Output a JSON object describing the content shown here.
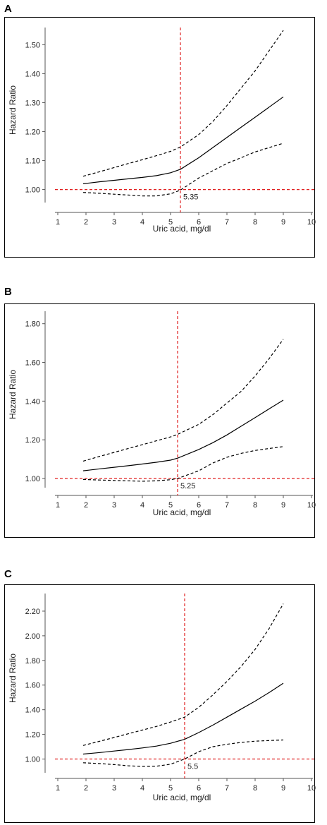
{
  "chart_data": [
    {
      "panel": "A",
      "type": "line",
      "xlabel": "Uric acid, mg/dl",
      "ylabel": "Hazard Ratio",
      "xticks": [
        1,
        2,
        3,
        4,
        5,
        6,
        7,
        8,
        9,
        10
      ],
      "xlim": [
        1,
        10
      ],
      "ylim": [
        0.96,
        1.55
      ],
      "yticks": [
        1.0,
        1.1,
        1.2,
        1.3,
        1.4,
        1.5
      ],
      "ytick_labels": [
        "1.00",
        "1.10",
        "1.20",
        "1.30",
        "1.40",
        "1.50"
      ],
      "cutoff_label": "5.35",
      "cutoff_x": 5.35,
      "ref_y": 1.0,
      "series": [
        {
          "style": "solid",
          "x": [
            1.9,
            2.5,
            3,
            3.5,
            4,
            4.5,
            5,
            5.35,
            6,
            6.5,
            7,
            7.5,
            8,
            8.5,
            9
          ],
          "y": [
            1.02,
            1.027,
            1.032,
            1.037,
            1.042,
            1.048,
            1.058,
            1.07,
            1.11,
            1.145,
            1.18,
            1.215,
            1.25,
            1.285,
            1.32
          ]
        },
        {
          "style": "dashed",
          "x": [
            1.9,
            2.5,
            3,
            3.5,
            4,
            4.5,
            5,
            5.35,
            6,
            6.5,
            7,
            7.5,
            8,
            8.5,
            9
          ],
          "y": [
            1.046,
            1.062,
            1.076,
            1.09,
            1.103,
            1.117,
            1.132,
            1.147,
            1.19,
            1.235,
            1.29,
            1.35,
            1.41,
            1.48,
            1.55
          ]
        },
        {
          "style": "dashed",
          "x": [
            1.9,
            2.5,
            3,
            3.5,
            4,
            4.5,
            5,
            5.35,
            6,
            6.5,
            7,
            7.5,
            8,
            8.5,
            9
          ],
          "y": [
            0.99,
            0.987,
            0.984,
            0.981,
            0.978,
            0.978,
            0.985,
            0.998,
            1.04,
            1.065,
            1.09,
            1.11,
            1.13,
            1.145,
            1.16
          ]
        }
      ]
    },
    {
      "panel": "B",
      "type": "line",
      "xlabel": "Uric acid, mg/dl",
      "ylabel": "Hazard Ratio",
      "xticks": [
        1,
        2,
        3,
        4,
        5,
        6,
        7,
        8,
        9,
        10
      ],
      "xlim": [
        1,
        10
      ],
      "ylim": [
        0.96,
        1.85
      ],
      "yticks": [
        1.0,
        1.2,
        1.4,
        1.6,
        1.8
      ],
      "ytick_labels": [
        "1.00",
        "1.20",
        "1.40",
        "1.60",
        "1.80"
      ],
      "cutoff_label": "5.25",
      "cutoff_x": 5.25,
      "ref_y": 1.0,
      "series": [
        {
          "style": "solid",
          "x": [
            1.9,
            2.5,
            3,
            3.5,
            4,
            4.5,
            5,
            5.25,
            6,
            6.5,
            7,
            7.5,
            8,
            8.5,
            9
          ],
          "y": [
            1.04,
            1.05,
            1.058,
            1.066,
            1.075,
            1.084,
            1.095,
            1.105,
            1.15,
            1.185,
            1.225,
            1.27,
            1.315,
            1.36,
            1.405
          ]
        },
        {
          "style": "dashed",
          "x": [
            1.9,
            2.5,
            3,
            3.5,
            4,
            4.5,
            5,
            5.25,
            6,
            6.5,
            7,
            7.5,
            8,
            8.5,
            9
          ],
          "y": [
            1.09,
            1.115,
            1.135,
            1.155,
            1.175,
            1.195,
            1.215,
            1.228,
            1.28,
            1.33,
            1.39,
            1.45,
            1.53,
            1.62,
            1.72
          ]
        },
        {
          "style": "dashed",
          "x": [
            1.9,
            2.5,
            3,
            3.5,
            4,
            4.5,
            5,
            5.25,
            6,
            6.5,
            7,
            7.5,
            8,
            8.5,
            9
          ],
          "y": [
            0.995,
            0.992,
            0.99,
            0.988,
            0.986,
            0.988,
            0.994,
            1.0,
            1.04,
            1.08,
            1.11,
            1.13,
            1.145,
            1.155,
            1.165
          ]
        }
      ]
    },
    {
      "panel": "C",
      "type": "line",
      "xlabel": "Uric acid, mg/dl",
      "ylabel": "Hazard Ratio",
      "xticks": [
        1,
        2,
        3,
        4,
        5,
        6,
        7,
        8,
        9,
        10
      ],
      "xlim": [
        1,
        10
      ],
      "ylim": [
        0.9,
        2.32
      ],
      "yticks": [
        1.0,
        1.2,
        1.4,
        1.6,
        1.8,
        2.0,
        2.2
      ],
      "ytick_labels": [
        "1.00",
        "1.20",
        "1.40",
        "1.60",
        "1.80",
        "2.00",
        "2.20"
      ],
      "cutoff_label": "5.5",
      "cutoff_x": 5.5,
      "ref_y": 1.0,
      "series": [
        {
          "style": "solid",
          "x": [
            1.9,
            2.5,
            3,
            3.5,
            4,
            4.5,
            5,
            5.5,
            6,
            6.5,
            7,
            7.5,
            8,
            8.5,
            9
          ],
          "y": [
            1.04,
            1.053,
            1.065,
            1.077,
            1.09,
            1.105,
            1.128,
            1.16,
            1.215,
            1.275,
            1.34,
            1.405,
            1.47,
            1.54,
            1.615
          ]
        },
        {
          "style": "dashed",
          "x": [
            1.9,
            2.5,
            3,
            3.5,
            4,
            4.5,
            5,
            5.5,
            6,
            6.5,
            7,
            7.5,
            8,
            8.5,
            9
          ],
          "y": [
            1.11,
            1.145,
            1.175,
            1.205,
            1.235,
            1.265,
            1.3,
            1.34,
            1.42,
            1.52,
            1.63,
            1.75,
            1.89,
            2.06,
            2.26
          ]
        },
        {
          "style": "dashed",
          "x": [
            1.9,
            2.5,
            3,
            3.5,
            4,
            4.5,
            5,
            5.5,
            6,
            6.5,
            7,
            7.5,
            8,
            8.5,
            9
          ],
          "y": [
            0.97,
            0.963,
            0.955,
            0.945,
            0.94,
            0.942,
            0.958,
            1.0,
            1.06,
            1.1,
            1.12,
            1.135,
            1.145,
            1.15,
            1.155
          ]
        }
      ]
    }
  ]
}
